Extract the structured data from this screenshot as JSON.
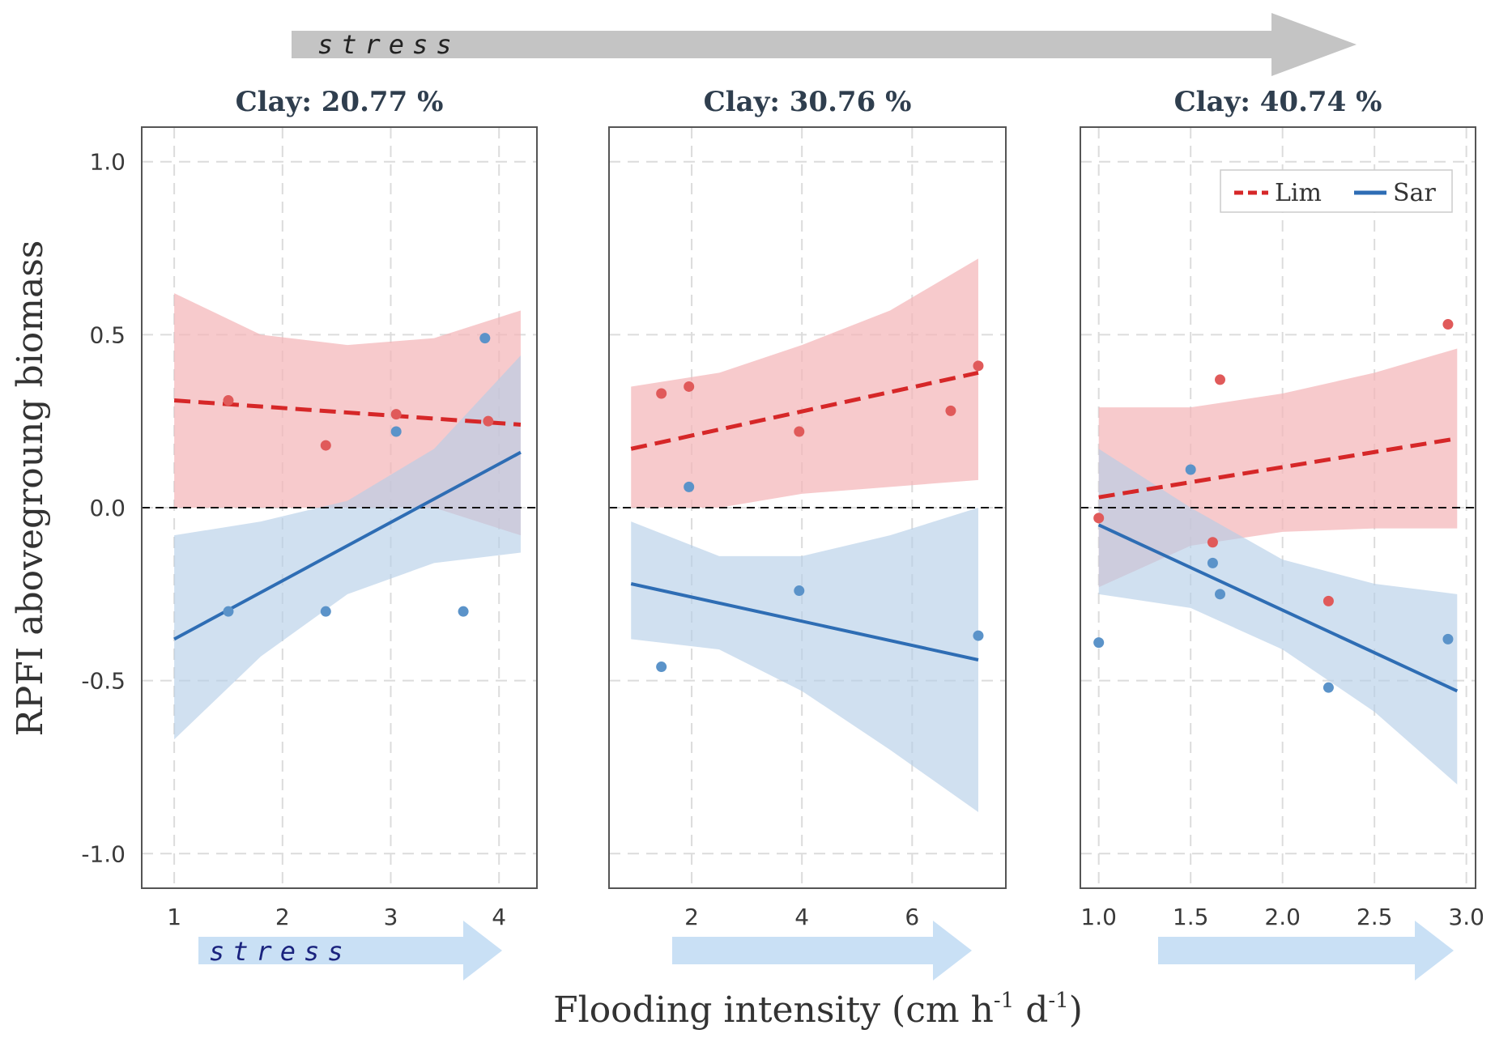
{
  "top_arrow": {
    "label": "stress",
    "color": "#c4c4c4",
    "text_color": "#222222"
  },
  "bottom_arrows": {
    "label": "stress",
    "color": "#c9e0f5",
    "text_color": "#1a237e"
  },
  "y_axis_label": "RPFI abovegroung biomass",
  "x_axis_label": "Flooding intensity (cm h",
  "x_axis_label_sup1": "-1",
  "x_axis_label_mid": " d",
  "x_axis_label_sup2": "-1",
  "x_axis_label_end": ")",
  "colors": {
    "Lim": "#d62728",
    "Lim_band": "#f4b6b8",
    "Lim_point": "#e05a5a",
    "Sar": "#2e6db4",
    "Sar_band": "#b3cde6",
    "Sar_point": "#5b93c9"
  },
  "legend": {
    "entries": [
      "Lim",
      "Sar"
    ]
  },
  "chart_data": [
    {
      "type": "scatter",
      "title": "Clay: 20.77 %",
      "xlabel": "Flooding intensity (cm h-1 d-1)",
      "ylabel": "RPFI abovegroung biomass",
      "xlim": [
        0.7,
        4.35
      ],
      "ylim": [
        -1.1,
        1.1
      ],
      "xticks": [
        1,
        2,
        3,
        4
      ],
      "xtick_labels": [
        "1",
        "2",
        "3",
        "4"
      ],
      "yticks": [
        -1.0,
        -0.5,
        0.0,
        0.5,
        1.0
      ],
      "ytick_labels": [
        "-1.0",
        "-0.5",
        "0.0",
        "0.5",
        "1.0"
      ],
      "grid": true,
      "reference_line": 0,
      "series": [
        {
          "name": "Lim",
          "points": [
            [
              1.5,
              0.31
            ],
            [
              2.4,
              0.18
            ],
            [
              3.05,
              0.27
            ],
            [
              3.9,
              0.25
            ]
          ],
          "fit": {
            "x": [
              1.0,
              4.2
            ],
            "y": [
              0.31,
              0.24
            ]
          },
          "band": {
            "x": [
              1.0,
              1.8,
              2.6,
              3.4,
              4.2
            ],
            "upper": [
              0.62,
              0.5,
              0.47,
              0.49,
              0.57
            ],
            "lower": [
              0.0,
              0.0,
              0.0,
              0.0,
              -0.08
            ]
          }
        },
        {
          "name": "Sar",
          "points": [
            [
              1.5,
              -0.3
            ],
            [
              2.4,
              -0.3
            ],
            [
              3.05,
              0.22
            ],
            [
              3.67,
              -0.3
            ],
            [
              3.87,
              0.49
            ]
          ],
          "fit": {
            "x": [
              1.0,
              4.2
            ],
            "y": [
              -0.38,
              0.16
            ]
          },
          "band": {
            "x": [
              1.0,
              1.8,
              2.6,
              3.4,
              4.2
            ],
            "upper": [
              -0.08,
              -0.04,
              0.02,
              0.17,
              0.44
            ],
            "lower": [
              -0.67,
              -0.43,
              -0.25,
              -0.16,
              -0.13
            ]
          }
        }
      ]
    },
    {
      "type": "scatter",
      "title": "Clay: 30.76 %",
      "xlabel": "Flooding intensity (cm h-1 d-1)",
      "ylabel": "",
      "xlim": [
        0.5,
        7.7
      ],
      "ylim": [
        -1.1,
        1.1
      ],
      "xticks": [
        2,
        4,
        6
      ],
      "xtick_labels": [
        "2",
        "4",
        "6"
      ],
      "yticks": [
        -1.0,
        -0.5,
        0.0,
        0.5,
        1.0
      ],
      "grid": true,
      "reference_line": 0,
      "series": [
        {
          "name": "Lim",
          "points": [
            [
              1.45,
              0.33
            ],
            [
              1.95,
              0.35
            ],
            [
              3.95,
              0.22
            ],
            [
              6.7,
              0.28
            ],
            [
              7.2,
              0.41
            ]
          ],
          "fit": {
            "x": [
              0.9,
              7.2
            ],
            "y": [
              0.17,
              0.39
            ]
          },
          "band": {
            "x": [
              0.9,
              2.5,
              4.0,
              5.6,
              7.2
            ],
            "upper": [
              0.35,
              0.39,
              0.47,
              0.57,
              0.72
            ],
            "lower": [
              0.0,
              0.0,
              0.04,
              0.06,
              0.08
            ]
          }
        },
        {
          "name": "Sar",
          "points": [
            [
              1.45,
              -0.46
            ],
            [
              1.95,
              0.06
            ],
            [
              3.95,
              -0.24
            ],
            [
              7.2,
              -0.37
            ]
          ],
          "fit": {
            "x": [
              0.9,
              7.2
            ],
            "y": [
              -0.22,
              -0.44
            ]
          },
          "band": {
            "x": [
              0.9,
              2.5,
              4.0,
              5.6,
              7.2
            ],
            "upper": [
              -0.04,
              -0.14,
              -0.14,
              -0.08,
              0.0
            ],
            "lower": [
              -0.38,
              -0.41,
              -0.53,
              -0.7,
              -0.88
            ]
          }
        }
      ]
    },
    {
      "type": "scatter",
      "title": "Clay: 40.74 %",
      "xlabel": "Flooding intensity (cm h-1 d-1)",
      "ylabel": "",
      "xlim": [
        0.9,
        3.05
      ],
      "ylim": [
        -1.1,
        1.1
      ],
      "xticks": [
        1.0,
        1.5,
        2.0,
        2.5,
        3.0
      ],
      "xtick_labels": [
        "1.0",
        "1.5",
        "2.0",
        "2.5",
        "3.0"
      ],
      "yticks": [
        -1.0,
        -0.5,
        0.0,
        0.5,
        1.0
      ],
      "grid": true,
      "reference_line": 0,
      "legend_position": "top-right",
      "series": [
        {
          "name": "Lim",
          "points": [
            [
              1.0,
              -0.03
            ],
            [
              1.62,
              -0.1
            ],
            [
              1.66,
              0.37
            ],
            [
              2.25,
              -0.27
            ],
            [
              2.9,
              0.53
            ]
          ],
          "fit": {
            "x": [
              1.0,
              2.95
            ],
            "y": [
              0.03,
              0.2
            ]
          },
          "band": {
            "x": [
              1.0,
              1.5,
              2.0,
              2.5,
              2.95
            ],
            "upper": [
              0.29,
              0.29,
              0.33,
              0.39,
              0.46
            ],
            "lower": [
              -0.23,
              -0.11,
              -0.07,
              -0.06,
              -0.06
            ]
          }
        },
        {
          "name": "Sar",
          "points": [
            [
              1.0,
              -0.39
            ],
            [
              1.5,
              0.11
            ],
            [
              1.62,
              -0.16
            ],
            [
              1.66,
              -0.25
            ],
            [
              2.25,
              -0.52
            ],
            [
              2.9,
              -0.38
            ]
          ],
          "fit": {
            "x": [
              1.0,
              2.95
            ],
            "y": [
              -0.05,
              -0.53
            ]
          },
          "band": {
            "x": [
              1.0,
              1.5,
              2.0,
              2.5,
              2.95
            ],
            "upper": [
              0.17,
              0.0,
              -0.15,
              -0.22,
              -0.25
            ],
            "lower": [
              -0.25,
              -0.29,
              -0.41,
              -0.59,
              -0.8
            ]
          }
        }
      ]
    }
  ]
}
